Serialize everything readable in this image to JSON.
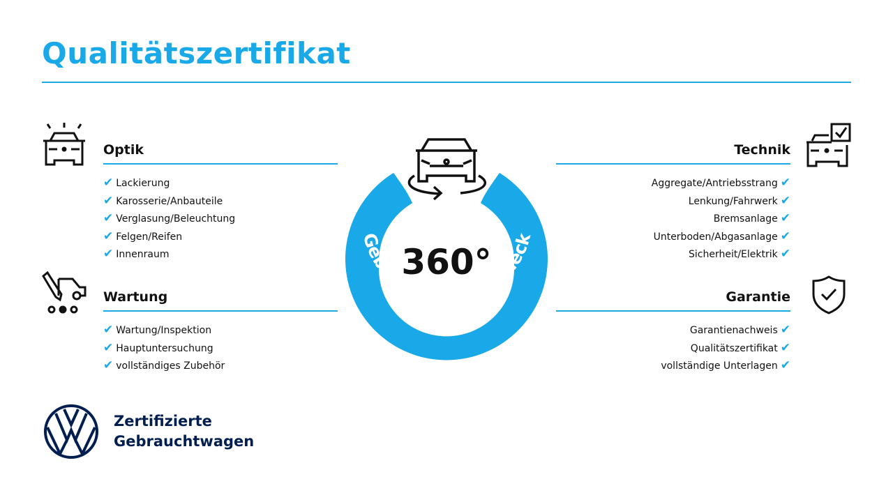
{
  "title": "Qualitätszertifikat",
  "colors": {
    "accent": "#1aa9e8",
    "brand_navy": "#001e50"
  },
  "badge": {
    "value": "360°",
    "ring_text": "Gebrauchtwagen-Check",
    "icon": "car-rotate-icon"
  },
  "sections": {
    "optik": {
      "heading": "Optik",
      "icon": "car-lights-icon",
      "items": [
        "Lackierung",
        "Karosserie/Anbauteile",
        "Verglasung/Beleuchtung",
        "Felgen/Reifen",
        "Innenraum"
      ]
    },
    "wartung": {
      "heading": "Wartung",
      "icon": "car-service-icon",
      "items": [
        "Wartung/Inspektion",
        "Hauptuntersuchung",
        "vollständiges Zubehör"
      ]
    },
    "technik": {
      "heading": "Technik",
      "icon": "car-checkbox-icon",
      "items": [
        "Aggregate/Antriebsstrang",
        "Lenkung/Fahrwerk",
        "Bremsanlage",
        "Unterboden/Abgasanlage",
        "Sicherheit/Elektrik"
      ]
    },
    "garantie": {
      "heading": "Garantie",
      "icon": "shield-check-icon",
      "items": [
        "Garantienachweis",
        "Qualitätszertifikat",
        "vollständige Unterlagen"
      ]
    }
  },
  "check_glyph": "✔",
  "footer": {
    "line1": "Zertifizierte",
    "line2": "Gebrauchtwagen",
    "logo": "vw-logo"
  }
}
